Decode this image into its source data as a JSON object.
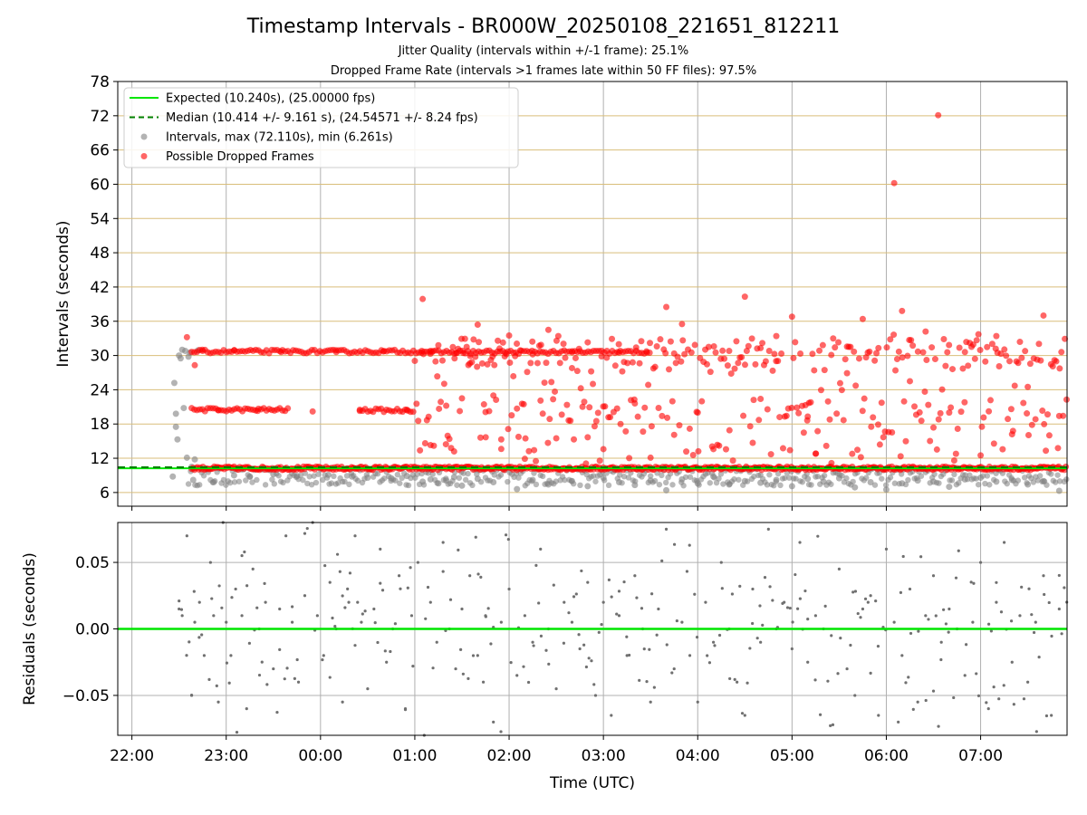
{
  "figure": {
    "title": "Timestamp Intervals - BR000W_20250108_221651_812211",
    "subtitle1": "Jitter Quality (intervals within +/-1 frame): 25.1%",
    "subtitle2": "Dropped Frame Rate (intervals >1 frames late within 50 FF files): 97.5%"
  },
  "chart_data": [
    {
      "type": "scatter",
      "name": "intervals",
      "xlabel": "",
      "ylabel": "Intervals (seconds)",
      "xlim": [
        "21:51",
        "07:55"
      ],
      "ylim": [
        3.6,
        78
      ],
      "y_ticks": [
        "6",
        "12",
        "18",
        "24",
        "30",
        "36",
        "42",
        "48",
        "54",
        "60",
        "66",
        "72",
        "78"
      ],
      "y_tick_values": [
        6,
        12,
        18,
        24,
        30,
        36,
        42,
        48,
        54,
        60,
        66,
        72,
        78
      ],
      "x_ticks": [
        "22:00",
        "23:00",
        "00:00",
        "01:00",
        "02:00",
        "03:00",
        "04:00",
        "05:00",
        "06:00",
        "07:00"
      ],
      "grid": "on",
      "legend_position": "top-left",
      "legend": [
        {
          "label": "Expected (10.240s), (25.00000 fps)",
          "style": "solid-line",
          "color": "#00e600"
        },
        {
          "label": "Median (10.414 +/- 9.161 s), (24.54571 +/- 8.24 fps)",
          "style": "dashed-line",
          "color": "#008000"
        },
        {
          "label": "Intervals, max (72.110s), min (6.261s)",
          "style": "dot",
          "color": "#808080"
        },
        {
          "label": "Possible Dropped Frames",
          "style": "dot",
          "color": "#ff0000"
        }
      ],
      "expected_interval": 10.24,
      "median_interval": 10.414,
      "series": [
        {
          "name": "Intervals, max (72.110s), min (6.261s)",
          "color": "#808080",
          "x": [
            "22:26",
            "22:27",
            "22:28",
            "22:28",
            "22:29",
            "22:30",
            "22:31",
            "22:32",
            "22:33",
            "22:34",
            "22:35",
            "22:36",
            "22:37",
            "22:38",
            "22:39",
            "22:40",
            "22:42",
            "22:52",
            "23:05",
            "23:15",
            "23:30",
            "23:45",
            "00:05",
            "00:20",
            "00:30",
            "00:45",
            "00:55",
            "01:05",
            "01:10",
            "01:15",
            "01:20",
            "01:25",
            "01:30",
            "01:40",
            "01:50",
            "02:05",
            "02:15",
            "02:25",
            "02:40",
            "02:50",
            "03:00",
            "03:10",
            "03:20",
            "03:30",
            "03:40",
            "03:50",
            "04:00",
            "04:10",
            "04:20",
            "04:30",
            "04:40",
            "04:50",
            "05:00",
            "05:10",
            "05:20",
            "05:30",
            "05:40",
            "05:50",
            "06:00",
            "06:10",
            "06:20",
            "06:30",
            "06:40",
            "06:50",
            "07:00",
            "07:10",
            "07:20",
            "07:30",
            "07:40",
            "07:50"
          ],
          "y": [
            8.8,
            25.2,
            19.8,
            17.5,
            15.3,
            30.0,
            29.5,
            31.0,
            20.8,
            30.8,
            12.1,
            29.8,
            30.5,
            10.5,
            8.2,
            11.8,
            30.9,
            7.8,
            9.0,
            8.8,
            9.2,
            8.9,
            9.1,
            8.8,
            8.6,
            8.5,
            8.9,
            7.9,
            8.3,
            7.6,
            8.1,
            8.7,
            7.2,
            8.4,
            7.8,
            6.6,
            8.2,
            7.4,
            8.0,
            7.1,
            8.6,
            7.8,
            7.3,
            8.1,
            6.4,
            8.3,
            7.6,
            8.8,
            7.4,
            8.0,
            7.7,
            8.2,
            7.1,
            8.4,
            7.9,
            8.5,
            6.9,
            7.8,
            6.5,
            7.6,
            8.1,
            7.9,
            7.0,
            8.3,
            8.6,
            7.9,
            8.2,
            7.4,
            8.0,
            6.3
          ]
        },
        {
          "name": "Possible Dropped Frames",
          "color": "#ff0000",
          "x": [
            "22:35",
            "22:40",
            "22:45",
            "22:55",
            "23:05",
            "23:20",
            "23:35",
            "23:55",
            "00:10",
            "00:25",
            "00:40",
            "00:55",
            "01:05",
            "01:10",
            "01:15",
            "01:20",
            "01:25",
            "01:30",
            "01:35",
            "01:40",
            "01:45",
            "01:50",
            "01:55",
            "02:00",
            "02:05",
            "02:10",
            "02:15",
            "02:20",
            "02:25",
            "02:30",
            "02:40",
            "02:50",
            "03:00",
            "03:10",
            "03:20",
            "03:30",
            "03:40",
            "03:45",
            "03:50",
            "04:00",
            "04:10",
            "04:20",
            "04:30",
            "04:35",
            "04:40",
            "04:50",
            "05:00",
            "05:10",
            "05:15",
            "05:25",
            "05:35",
            "05:45",
            "05:55",
            "06:05",
            "06:10",
            "06:15",
            "06:25",
            "06:33",
            "06:40",
            "06:50",
            "07:00",
            "07:10",
            "07:20",
            "07:30",
            "07:40",
            "07:50"
          ],
          "y": [
            33.2,
            28.3,
            30.8,
            20.4,
            30.9,
            20.3,
            30.6,
            20.2,
            30.6,
            20.3,
            30.7,
            20.5,
            39.9,
            14.3,
            31.8,
            21.2,
            13.2,
            22.5,
            28.6,
            35.4,
            20.1,
            23.0,
            15.3,
            33.5,
            20.7,
            11.9,
            30.2,
            22.1,
            34.5,
            15.5,
            27.8,
            32.3,
            13.6,
            30.5,
            21.6,
            12.1,
            38.5,
            16.1,
            35.5,
            20.0,
            13.6,
            30.8,
            40.3,
            14.7,
            22.4,
            33.4,
            36.8,
            19.3,
            12.8,
            30.1,
            26.9,
            36.4,
            31.3,
            60.2,
            37.8,
            25.5,
            34.2,
            72.1,
            20.0,
            30.6,
            12.5,
            33.4,
            16.2,
            24.5,
            37.0,
            19.4
          ]
        },
        {
          "name": "Possible Dropped Frames (bands)",
          "color": "#ff0000",
          "bands": [
            {
              "from": "22:38",
              "to": "07:55",
              "value": 10.25
            },
            {
              "from": "22:38",
              "to": "01:10",
              "value": 30.7
            },
            {
              "from": "01:10",
              "to": "03:30",
              "value": 30.6
            },
            {
              "from": "22:38",
              "to": "23:40",
              "value": 20.5
            },
            {
              "from": "00:25",
              "to": "01:00",
              "value": 20.4
            }
          ]
        }
      ]
    },
    {
      "type": "scatter",
      "name": "residuals",
      "xlabel": "Time (UTC)",
      "ylabel": "Residuals (seconds)",
      "xlim": [
        "21:51",
        "07:55"
      ],
      "ylim": [
        -0.08,
        0.08
      ],
      "y_ticks": [
        "−0.05",
        "0.00",
        "0.05"
      ],
      "y_tick_values": [
        -0.05,
        0,
        0.05
      ],
      "x_ticks": [
        "22:00",
        "23:00",
        "00:00",
        "01:00",
        "02:00",
        "03:00",
        "04:00",
        "05:00",
        "06:00",
        "07:00"
      ],
      "grid": "on",
      "zero_line_color": "#00e600",
      "series": [
        {
          "name": "",
          "color": "#808080",
          "x": [
            "22:30",
            "22:32",
            "22:35",
            "22:38",
            "22:40",
            "22:43",
            "22:46",
            "22:50",
            "22:52",
            "22:55",
            "22:58",
            "23:00",
            "23:03",
            "23:06",
            "23:10",
            "23:13",
            "23:17",
            "23:21",
            "23:25",
            "23:30",
            "23:34",
            "23:38",
            "23:42",
            "23:46",
            "23:50",
            "23:55",
            "23:58",
            "00:02",
            "00:06",
            "00:10",
            "00:14",
            "00:18",
            "00:22",
            "00:26",
            "00:30",
            "00:34",
            "00:38",
            "00:42",
            "00:46",
            "00:50",
            "00:54",
            "00:58",
            "01:02",
            "01:06",
            "01:10",
            "01:14",
            "01:18",
            "01:22",
            "01:26",
            "01:30",
            "01:35",
            "01:40",
            "01:45",
            "01:50",
            "01:55",
            "02:00",
            "02:05",
            "02:10",
            "02:15",
            "02:20",
            "02:25",
            "02:30",
            "02:35",
            "02:40",
            "02:45",
            "02:50",
            "02:55",
            "03:00",
            "03:05",
            "03:10",
            "03:15",
            "03:20",
            "03:25",
            "03:30",
            "03:35",
            "03:40",
            "03:45",
            "03:50",
            "03:55",
            "04:00",
            "04:05",
            "04:10",
            "04:15",
            "04:20",
            "04:25",
            "04:30",
            "04:35",
            "04:40",
            "04:45",
            "04:50",
            "04:55",
            "05:00",
            "05:05",
            "05:10",
            "05:15",
            "05:20",
            "05:25",
            "05:30",
            "05:35",
            "05:40",
            "05:45",
            "05:50",
            "05:55",
            "06:00",
            "06:05",
            "06:10",
            "06:15",
            "06:20",
            "06:25",
            "06:30",
            "06:35",
            "06:40",
            "06:45",
            "06:50",
            "06:55",
            "07:00",
            "07:05",
            "07:10",
            "07:15",
            "07:20",
            "07:25",
            "07:30",
            "07:35",
            "07:40",
            "07:45",
            "07:50"
          ],
          "y": [
            0.015,
            0.01,
            0.07,
            -0.05,
            0.005,
            0.02,
            -0.02,
            0.05,
            0.01,
            -0.055,
            0.08,
            0.005,
            -0.02,
            0.03,
            0.01,
            -0.06,
            0.045,
            0.0,
            0.02,
            -0.03,
            0.015,
            0.07,
            0.005,
            -0.04,
            0.025,
            0.08,
            0.01,
            -0.02,
            0.035,
            0.0,
            -0.055,
            0.02,
            0.07,
            0.005,
            -0.045,
            0.015,
            0.06,
            -0.025,
            0.0,
            0.04,
            -0.06,
            0.01,
            0.05,
            -0.08,
            0.02,
            -0.01,
            0.065,
            0.0,
            -0.03,
            0.015,
            0.04,
            -0.02,
            0.01,
            -0.07,
            0.005,
            0.03,
            -0.035,
            0.01,
            -0.01,
            0.06,
            0.0,
            -0.045,
            0.02,
            0.005,
            -0.015,
            0.035,
            -0.05,
            0.02,
            -0.065,
            0.01,
            -0.02,
            0.04,
            0.0,
            -0.055,
            0.015,
            0.075,
            -0.03,
            0.005,
            -0.02,
            -0.055,
            0.02,
            -0.01,
            0.05,
            0.0,
            -0.04,
            -0.065,
            0.03,
            -0.01,
            0.075,
            0.0,
            0.02,
            -0.015,
            0.065,
            -0.025,
            0.01,
            0.0,
            -0.005,
            0.045,
            -0.03,
            -0.05,
            0.015,
            0.025,
            -0.065,
            0.06,
            0.005,
            -0.02,
            0.03,
            -0.055,
            0.01,
            0.04,
            -0.01,
            0.015,
            0.0,
            -0.035,
            0.005,
            0.05,
            -0.06,
            0.02,
            0.065,
            -0.025,
            0.01,
            -0.04,
            0.005,
            0.04,
            -0.065,
            0.015
          ]
        }
      ]
    }
  ]
}
